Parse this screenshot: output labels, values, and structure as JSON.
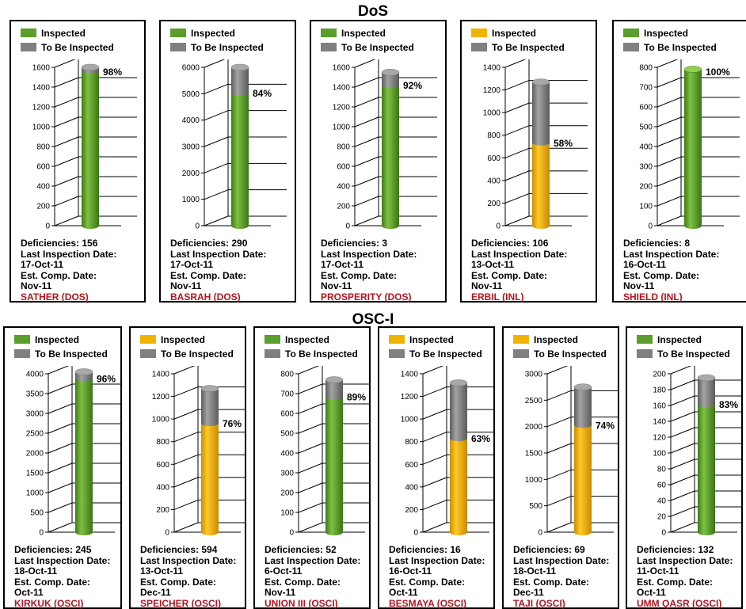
{
  "groups": [
    {
      "title": "DoS",
      "label_name": "dos-group-title"
    },
    {
      "title": "OSC-I",
      "label_name": "osci-group-title"
    }
  ],
  "legend": {
    "inspected": "Inspected",
    "to_be_inspected": "To Be Inspected"
  },
  "labels": {
    "deficiencies": "Deficiencies:",
    "last_inspection": "Last Inspection Date:",
    "est_comp": "Est. Comp. Date:"
  },
  "colors": {
    "green": "#5a9e2e",
    "gold": "#f0b400",
    "gray": "#808080",
    "facility": "#b3141e"
  },
  "chart_data": [
    {
      "type": "bar",
      "group": "DoS",
      "facility": "SATHER (DOS)",
      "percent_label": "98%",
      "inspected_fraction": 0.98,
      "total": 1600,
      "inspected_color": "green",
      "ylim": [
        0,
        1600
      ],
      "ticks": [
        0,
        200,
        400,
        600,
        800,
        1000,
        1200,
        1400,
        1600
      ],
      "deficiencies": "156",
      "last_inspection": "17-Oct-11",
      "est_comp": "Nov-11"
    },
    {
      "type": "bar",
      "group": "DoS",
      "facility": "BASRAH (DOS)",
      "percent_label": "84%",
      "inspected_fraction": 0.84,
      "total": 6000,
      "inspected_color": "green",
      "ylim": [
        0,
        6000
      ],
      "ticks": [
        0,
        1000,
        2000,
        3000,
        4000,
        5000,
        6000
      ],
      "deficiencies": "290",
      "last_inspection": "17-Oct-11",
      "est_comp": "Nov-11"
    },
    {
      "type": "bar",
      "group": "DoS",
      "facility": "PROSPERITY (DOS)",
      "percent_label": "92%",
      "inspected_fraction": 0.92,
      "total": 1550,
      "inspected_color": "green",
      "ylim": [
        0,
        1600
      ],
      "ticks": [
        0,
        200,
        400,
        600,
        800,
        1000,
        1200,
        1400,
        1600
      ],
      "deficiencies": "3",
      "last_inspection": "17-Oct-11",
      "est_comp": "Nov-11"
    },
    {
      "type": "bar",
      "group": "DoS",
      "facility": "ERBIL (INL)",
      "percent_label": "58%",
      "inspected_fraction": 0.58,
      "total": 1270,
      "inspected_color": "gold",
      "ylim": [
        0,
        1400
      ],
      "ticks": [
        0,
        200,
        400,
        600,
        800,
        1000,
        1200,
        1400
      ],
      "deficiencies": "106",
      "last_inspection": "13-Oct-11",
      "est_comp": "Nov-11"
    },
    {
      "type": "bar",
      "group": "DoS",
      "facility": "SHIELD (INL)",
      "percent_label": "100%",
      "inspected_fraction": 1.0,
      "total": 790,
      "inspected_color": "green",
      "ylim": [
        0,
        800
      ],
      "ticks": [
        0,
        100,
        200,
        300,
        400,
        500,
        600,
        700,
        800
      ],
      "deficiencies": "8",
      "last_inspection": "16-Oct-11",
      "est_comp": "Nov-11"
    },
    {
      "type": "bar",
      "group": "OSC-I",
      "facility": "KIRKUK (OSCI)",
      "percent_label": "96%",
      "inspected_fraction": 0.96,
      "total": 4050,
      "inspected_color": "green",
      "ylim": [
        0,
        4000
      ],
      "ticks": [
        0,
        500,
        1000,
        1500,
        2000,
        2500,
        3000,
        3500,
        4000
      ],
      "deficiencies": "245",
      "last_inspection": "18-Oct-11",
      "est_comp": "Oct-11"
    },
    {
      "type": "bar",
      "group": "OSC-I",
      "facility": "SPEICHER (OSCI)",
      "percent_label": "76%",
      "inspected_fraction": 0.76,
      "total": 1270,
      "inspected_color": "gold",
      "ylim": [
        0,
        1400
      ],
      "ticks": [
        0,
        200,
        400,
        600,
        800,
        1000,
        1200,
        1400
      ],
      "deficiencies": "594",
      "last_inspection": "13-Oct-11",
      "est_comp": "Dec-11"
    },
    {
      "type": "bar",
      "group": "OSC-I",
      "facility": "UNION III (OSCI)",
      "percent_label": "89%",
      "inspected_fraction": 0.89,
      "total": 770,
      "inspected_color": "green",
      "ylim": [
        0,
        800
      ],
      "ticks": [
        0,
        100,
        200,
        300,
        400,
        500,
        600,
        700,
        800
      ],
      "deficiencies": "52",
      "last_inspection": "6-Oct-11",
      "est_comp": "Nov-11"
    },
    {
      "type": "bar",
      "group": "OSC-I",
      "facility": "BESMAYA (OSCI)",
      "percent_label": "63%",
      "inspected_fraction": 0.63,
      "total": 1320,
      "inspected_color": "gold",
      "ylim": [
        0,
        1400
      ],
      "ticks": [
        0,
        200,
        400,
        600,
        800,
        1000,
        1200,
        1400
      ],
      "deficiencies": "16",
      "last_inspection": "16-Oct-11",
      "est_comp": "Oct-11"
    },
    {
      "type": "bar",
      "group": "OSC-I",
      "facility": "TAJI (OSCI)",
      "percent_label": "74%",
      "inspected_fraction": 0.74,
      "total": 2750,
      "inspected_color": "gold",
      "ylim": [
        0,
        3000
      ],
      "ticks": [
        0,
        500,
        1000,
        1500,
        2000,
        2500,
        3000
      ],
      "deficiencies": "69",
      "last_inspection": "18-Oct-11",
      "est_comp": "Dec-11"
    },
    {
      "type": "bar",
      "group": "OSC-I",
      "facility": "UMM QASR (OSCI)",
      "percent_label": "83%",
      "inspected_fraction": 0.83,
      "total": 195,
      "inspected_color": "green",
      "ylim": [
        0,
        200
      ],
      "ticks": [
        0,
        20,
        40,
        60,
        80,
        100,
        120,
        140,
        160,
        180,
        200
      ],
      "deficiencies": "132",
      "last_inspection": "11-Oct-11",
      "est_comp": "Oct-11"
    }
  ]
}
